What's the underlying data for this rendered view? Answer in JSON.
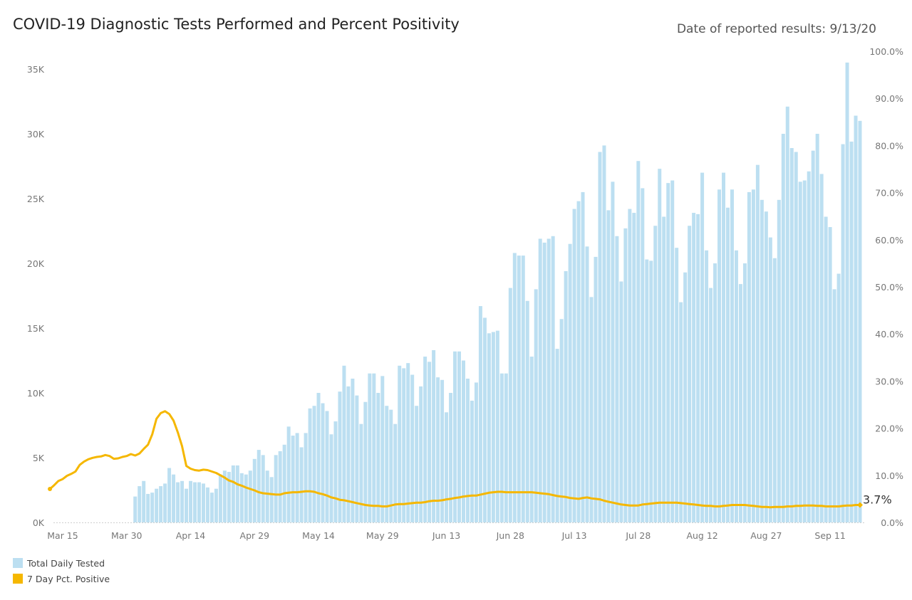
{
  "title": "COVID-19 Diagnostic Tests Performed and Percent Positivity",
  "date_of_results": "Date of reported results: 9/13/20",
  "legend": {
    "bars_label": "Total Daily Tested",
    "line_label": "7 Day Pct. Positive"
  },
  "colors": {
    "bars": "#bcdff1",
    "line": "#f5b700"
  },
  "chart_data": {
    "type": "bar",
    "start_date": "2020-03-15",
    "end_date": "2020-09-13",
    "x_tick_labels": [
      "Mar 15",
      "Mar 30",
      "Apr 14",
      "Apr 29",
      "May 14",
      "May 29",
      "Jun 13",
      "Jun 28",
      "Jul 13",
      "Jul 28",
      "Aug 12",
      "Aug 27",
      "Sep 11"
    ],
    "y_left": {
      "ylim": [
        0,
        35000
      ],
      "tick_labels": [
        "0K",
        "5K",
        "10K",
        "15K",
        "20K",
        "25K",
        "30K",
        "35K"
      ]
    },
    "y_right": {
      "ylim": [
        0,
        100
      ],
      "tick_labels": [
        "0.0%",
        "10.0%",
        "20.0%",
        "30.0%",
        "40.0%",
        "50.0%",
        "60.0%",
        "70.0%",
        "80.0%",
        "90.0%",
        "100.0%"
      ]
    },
    "series": [
      {
        "name": "Total Daily Tested",
        "axis": "left",
        "type": "bar",
        "values": [
          0,
          0,
          0,
          0,
          0,
          0,
          0,
          0,
          0,
          0,
          0,
          0,
          0,
          0,
          0,
          0,
          0,
          2000,
          2800,
          3200,
          2200,
          2300,
          2600,
          2800,
          3000,
          4200,
          3700,
          3100,
          3200,
          2600,
          3200,
          3100,
          3100,
          3000,
          2700,
          2300,
          2600,
          3700,
          4000,
          3900,
          4400,
          4400,
          3800,
          3700,
          4000,
          4900,
          5600,
          5200,
          4000,
          3500,
          5200,
          5500,
          6000,
          7400,
          6700,
          6900,
          5800,
          6900,
          8800,
          9000,
          10000,
          9200,
          8600,
          6800,
          7800,
          10100,
          12100,
          10500,
          11100,
          9800,
          7600,
          9300,
          11500,
          11500,
          10000,
          11300,
          9000,
          8700,
          7600,
          12100,
          11900,
          12300,
          11400,
          9000,
          10500,
          12800,
          12400,
          13300,
          11200,
          11000,
          8500,
          10000,
          13200,
          13200,
          12500,
          11100,
          9400,
          10800,
          16700,
          15800,
          14600,
          14700,
          14800,
          11500,
          11500,
          18100,
          20800,
          20600,
          20600,
          17100,
          12800,
          18000,
          21900,
          21600,
          21900,
          22100,
          13400,
          15700,
          19400,
          21500,
          24200,
          24800,
          25500,
          21300,
          17400,
          20500,
          28600,
          29100,
          24100,
          26300,
          22100,
          18600,
          22700,
          24200,
          23900,
          27900,
          25800,
          20300,
          20200,
          22900,
          27300,
          23600,
          26200,
          26400,
          21200,
          17000,
          19300,
          22900,
          23900,
          23800,
          27000,
          21000,
          18100,
          20000,
          25700,
          27000,
          24300,
          25700,
          21000,
          18400,
          20000,
          25500,
          25700,
          27600,
          24900,
          24000,
          22000,
          20400,
          24900,
          30000,
          32100,
          28900,
          28600,
          26300,
          26400,
          27100,
          28700,
          30000,
          26900,
          23600,
          22800,
          18000,
          19200,
          29200,
          35500,
          29400,
          31400,
          31000
        ]
      },
      {
        "name": "7 Day Pct. Positive",
        "axis": "right",
        "type": "line",
        "values": [
          7.1,
          7.9,
          8.8,
          9.2,
          9.9,
          10.3,
          10.8,
          12.2,
          12.9,
          13.4,
          13.7,
          13.9,
          14.0,
          14.3,
          14.1,
          13.5,
          13.6,
          13.9,
          14.1,
          14.5,
          14.2,
          14.6,
          15.6,
          16.5,
          18.7,
          22.0,
          23.2,
          23.6,
          23.0,
          21.6,
          19.1,
          16.2,
          12.0,
          11.4,
          11.1,
          11.0,
          11.2,
          11.1,
          10.8,
          10.5,
          10.0,
          9.5,
          8.9,
          8.6,
          8.1,
          7.8,
          7.4,
          7.1,
          6.8,
          6.4,
          6.2,
          6.1,
          6.0,
          5.9,
          5.9,
          6.2,
          6.3,
          6.4,
          6.4,
          6.5,
          6.6,
          6.6,
          6.5,
          6.2,
          6.0,
          5.7,
          5.3,
          5.1,
          4.8,
          4.7,
          4.5,
          4.3,
          4.1,
          3.9,
          3.7,
          3.6,
          3.5,
          3.5,
          3.4,
          3.4,
          3.6,
          3.8,
          3.9,
          3.9,
          4.0,
          4.1,
          4.2,
          4.2,
          4.3,
          4.5,
          4.6,
          4.6,
          4.7,
          4.9,
          5.0,
          5.2,
          5.3,
          5.5,
          5.6,
          5.7,
          5.7,
          5.9,
          6.1,
          6.3,
          6.4,
          6.5,
          6.5,
          6.4,
          6.4,
          6.4,
          6.4,
          6.4,
          6.4,
          6.4,
          6.3,
          6.2,
          6.1,
          6.0,
          5.8,
          5.6,
          5.5,
          5.4,
          5.2,
          5.1,
          5.0,
          5.2,
          5.3,
          5.1,
          5.0,
          4.9,
          4.6,
          4.4,
          4.2,
          4.0,
          3.8,
          3.7,
          3.6,
          3.6,
          3.6,
          3.8,
          3.9,
          4.0,
          4.1,
          4.2,
          4.2,
          4.2,
          4.2,
          4.2,
          4.1,
          4.0,
          3.9,
          3.8,
          3.7,
          3.6,
          3.5,
          3.5,
          3.4,
          3.4,
          3.5,
          3.6,
          3.7,
          3.7,
          3.7,
          3.7,
          3.6,
          3.5,
          3.4,
          3.3,
          3.3,
          3.2,
          3.3,
          3.3,
          3.3,
          3.4,
          3.4,
          3.5,
          3.5,
          3.6,
          3.6,
          3.6,
          3.5,
          3.5,
          3.4,
          3.4,
          3.4,
          3.4,
          3.5,
          3.6,
          3.6,
          3.7,
          3.7
        ]
      }
    ],
    "annotation": "3.7%"
  }
}
